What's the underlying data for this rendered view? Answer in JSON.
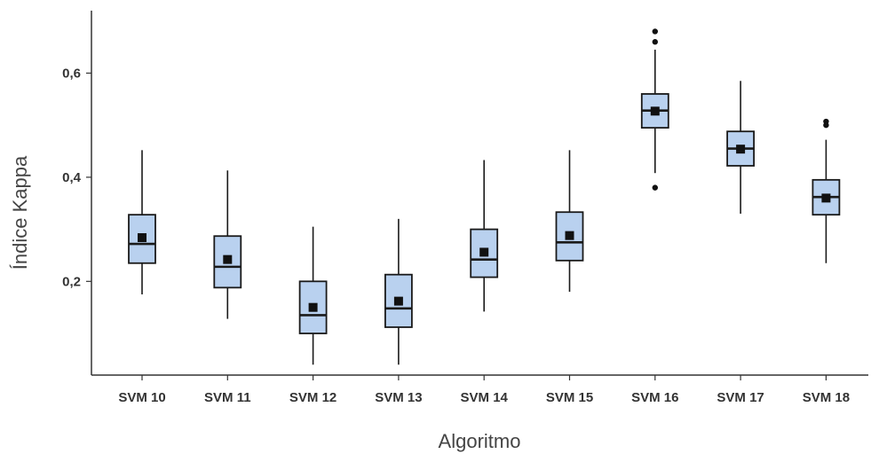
{
  "chart_data": {
    "type": "box",
    "xlabel": "Algoritmo",
    "ylabel": "Índice Kappa",
    "ylim": [
      0.02,
      0.72
    ],
    "yticks": [
      0.2,
      0.4,
      0.6
    ],
    "ytick_labels": [
      "0,2",
      "0,4",
      "0,6"
    ],
    "grid": false,
    "colors": {
      "box_fill": "#b9d1ef",
      "box_stroke": "#1a1a1a",
      "mean_marker": "#111111"
    },
    "series": [
      {
        "category": "SVM 10",
        "min": 0.175,
        "q1": 0.235,
        "median": 0.272,
        "q3": 0.328,
        "max": 0.452,
        "mean": 0.284,
        "outliers": []
      },
      {
        "category": "SVM 11",
        "min": 0.128,
        "q1": 0.188,
        "median": 0.228,
        "q3": 0.287,
        "max": 0.413,
        "mean": 0.242,
        "outliers": []
      },
      {
        "category": "SVM 12",
        "min": 0.04,
        "q1": 0.1,
        "median": 0.135,
        "q3": 0.2,
        "max": 0.305,
        "mean": 0.15,
        "outliers": []
      },
      {
        "category": "SVM 13",
        "min": 0.04,
        "q1": 0.112,
        "median": 0.148,
        "q3": 0.213,
        "max": 0.32,
        "mean": 0.162,
        "outliers": []
      },
      {
        "category": "SVM 14",
        "min": 0.142,
        "q1": 0.208,
        "median": 0.242,
        "q3": 0.3,
        "max": 0.433,
        "mean": 0.256,
        "outliers": []
      },
      {
        "category": "SVM 15",
        "min": 0.18,
        "q1": 0.24,
        "median": 0.275,
        "q3": 0.333,
        "max": 0.452,
        "mean": 0.288,
        "outliers": []
      },
      {
        "category": "SVM 16",
        "min": 0.408,
        "q1": 0.495,
        "median": 0.528,
        "q3": 0.56,
        "max": 0.645,
        "mean": 0.527,
        "outliers": [
          0.38,
          0.66,
          0.68
        ]
      },
      {
        "category": "SVM 17",
        "min": 0.33,
        "q1": 0.422,
        "median": 0.455,
        "q3": 0.488,
        "max": 0.585,
        "mean": 0.454,
        "outliers": []
      },
      {
        "category": "SVM 18",
        "min": 0.235,
        "q1": 0.328,
        "median": 0.362,
        "q3": 0.395,
        "max": 0.472,
        "mean": 0.36,
        "outliers": [
          0.5,
          0.507
        ]
      }
    ]
  }
}
